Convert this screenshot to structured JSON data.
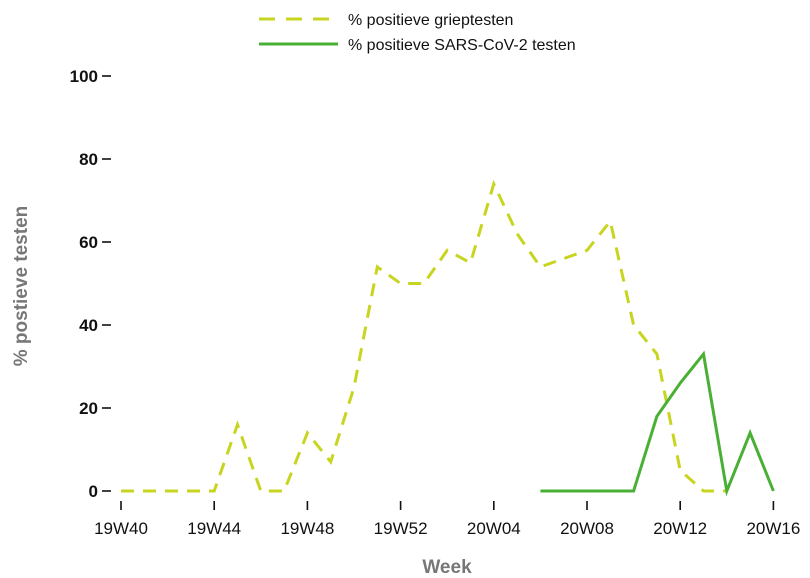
{
  "chart_data": {
    "type": "line",
    "xlabel": "Week",
    "ylabel": "% postieve testen",
    "ylim": [
      0,
      100
    ],
    "yticks": [
      0,
      20,
      40,
      60,
      80,
      100
    ],
    "grid": false,
    "legend_position": "top-center",
    "weeks": [
      "19W40",
      "19W41",
      "19W42",
      "19W43",
      "19W44",
      "19W45",
      "19W46",
      "19W47",
      "19W48",
      "19W49",
      "19W50",
      "19W51",
      "19W52",
      "20W01",
      "20W02",
      "20W03",
      "20W04",
      "20W05",
      "20W06",
      "20W07",
      "20W08",
      "20W09",
      "20W10",
      "20W11",
      "20W12",
      "20W13",
      "20W14",
      "20W15",
      "20W16"
    ],
    "xtick_labels": [
      "19W40",
      "19W44",
      "19W48",
      "19W52",
      "20W04",
      "20W08",
      "20W12",
      "20W16"
    ],
    "series": [
      {
        "name": "% positieve grieptesten",
        "color": "#c8d520",
        "style": "dashed",
        "values": [
          0,
          0,
          0,
          0,
          0,
          16,
          0,
          0,
          14,
          7,
          25,
          54,
          50,
          50,
          58,
          55,
          74,
          62,
          54,
          56,
          58,
          65,
          40,
          33,
          5,
          0,
          0,
          null,
          null
        ]
      },
      {
        "name": "% positieve SARS-CoV-2 testen",
        "color": "#4ab035",
        "style": "solid",
        "values": [
          null,
          null,
          null,
          null,
          null,
          null,
          null,
          null,
          null,
          null,
          null,
          null,
          null,
          null,
          null,
          null,
          null,
          null,
          0,
          0,
          0,
          0,
          0,
          18,
          26,
          33,
          0,
          14,
          0
        ]
      }
    ]
  }
}
